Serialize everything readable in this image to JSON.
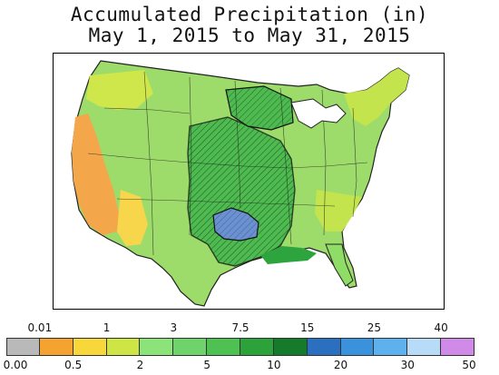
{
  "title": {
    "line1": "Accumulated Precipitation (in)",
    "line2": "May 1, 2015 to May 31, 2015"
  },
  "map": {
    "region": "contiguous-united-states",
    "variable": "accumulated precipitation",
    "units": "in",
    "hatched_overlay": true,
    "colors": {
      "dry_west": "#f5a34a",
      "light": "#f7dc4a",
      "moderate": "#c8e44a",
      "wet": "#7fd66a",
      "very_wet": "#3fb24a",
      "heavy": "#1f9a3c",
      "extreme": "#6a8fd6"
    }
  },
  "legend": {
    "upper_labels": [
      "0.01",
      "1",
      "3",
      "7.5",
      "15",
      "25",
      "40"
    ],
    "lower_labels": [
      "0.00",
      "0.5",
      "2",
      "5",
      "10",
      "20",
      "30",
      "50"
    ],
    "colors": [
      "#b9b9b9",
      "#f5a330",
      "#f7d739",
      "#cde646",
      "#8ce37a",
      "#6ed36a",
      "#4fc152",
      "#2ba33a",
      "#157a2a",
      "#2a6fc0",
      "#3b92dc",
      "#5fb1ee",
      "#b8dcf7",
      "#d08ae8"
    ]
  }
}
